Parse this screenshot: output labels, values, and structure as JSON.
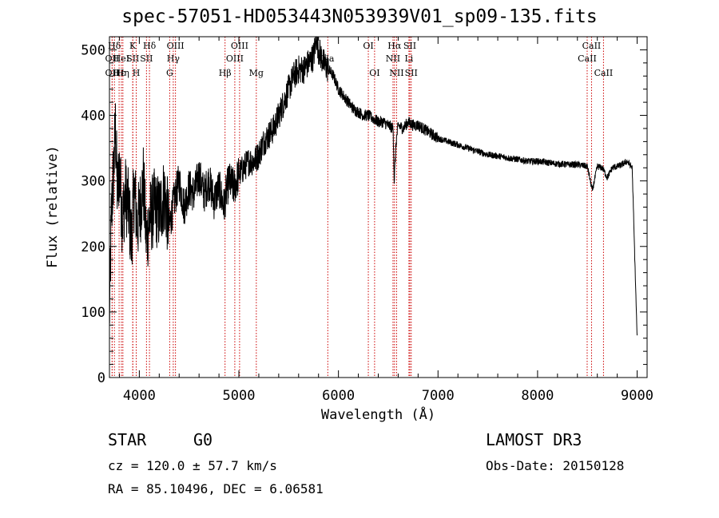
{
  "chart_data": {
    "type": "line",
    "title": "spec-57051-HD053443N053939V01_sp09-135.fits",
    "xlabel": "Wavelength (Å)",
    "ylabel": "Flux (relative)",
    "xlim": [
      3700,
      9100
    ],
    "ylim": [
      0,
      520
    ],
    "xticks": [
      4000,
      5000,
      6000,
      7000,
      8000,
      9000
    ],
    "yticks": [
      0,
      100,
      200,
      300,
      400,
      500
    ],
    "series": [
      {
        "name": "flux",
        "x": [
          3700,
          3720,
          3740,
          3760,
          3780,
          3800,
          3830,
          3860,
          3890,
          3920,
          3950,
          3980,
          4010,
          4040,
          4070,
          4100,
          4150,
          4200,
          4250,
          4300,
          4350,
          4400,
          4450,
          4500,
          4550,
          4600,
          4650,
          4700,
          4750,
          4800,
          4850,
          4870,
          4900,
          4950,
          5000,
          5050,
          5100,
          5150,
          5200,
          5250,
          5300,
          5350,
          5400,
          5450,
          5500,
          5550,
          5600,
          5650,
          5700,
          5750,
          5780,
          5800,
          5850,
          5900,
          5950,
          6000,
          6050,
          6100,
          6150,
          6200,
          6250,
          6300,
          6350,
          6400,
          6450,
          6500,
          6550,
          6560,
          6580,
          6600,
          6650,
          6700,
          6750,
          6800,
          6850,
          6900,
          6950,
          7000,
          7100,
          7200,
          7300,
          7400,
          7500,
          7600,
          7700,
          7800,
          7900,
          8000,
          8100,
          8200,
          8300,
          8400,
          8500,
          8550,
          8600,
          8650,
          8700,
          8750,
          8800,
          8850,
          8900,
          8950,
          9000
        ],
        "values": [
          90,
          250,
          310,
          380,
          280,
          320,
          240,
          280,
          260,
          210,
          290,
          230,
          260,
          300,
          210,
          240,
          260,
          250,
          280,
          230,
          270,
          300,
          260,
          290,
          280,
          310,
          280,
          300,
          270,
          290,
          260,
          280,
          300,
          290,
          310,
          320,
          330,
          330,
          340,
          360,
          370,
          380,
          400,
          420,
          440,
          460,
          470,
          470,
          480,
          490,
          520,
          500,
          480,
          470,
          460,
          440,
          430,
          420,
          410,
          405,
          400,
          400,
          395,
          390,
          390,
          385,
          380,
          300,
          360,
          385,
          380,
          390,
          385,
          385,
          380,
          375,
          370,
          365,
          360,
          355,
          350,
          345,
          340,
          338,
          335,
          333,
          330,
          330,
          328,
          326,
          325,
          325,
          322,
          285,
          322,
          320,
          305,
          320,
          322,
          325,
          330,
          320,
          60
        ]
      }
    ],
    "lines": [
      {
        "label": "Hδ",
        "x": 3750,
        "row": 0
      },
      {
        "label": "OII",
        "x": 3727,
        "row": 1
      },
      {
        "label": "OII",
        "x": 3727,
        "row": 2
      },
      {
        "label": "Hε",
        "x": 3797,
        "row": 2
      },
      {
        "label": "Hη",
        "x": 3835,
        "row": 2
      },
      {
        "label": "HeI",
        "x": 3820,
        "row": 1
      },
      {
        "label": "K",
        "x": 3934,
        "row": 0
      },
      {
        "label": "SII",
        "x": 3935,
        "row": 1
      },
      {
        "label": "H",
        "x": 3969,
        "row": 2
      },
      {
        "label": "Hδ",
        "x": 4102,
        "row": 0
      },
      {
        "label": "SII",
        "x": 4072,
        "row": 1
      },
      {
        "label": "OIII",
        "x": 4363,
        "row": 0
      },
      {
        "label": "Hγ",
        "x": 4341,
        "row": 1
      },
      {
        "label": "G",
        "x": 4305,
        "row": 2
      },
      {
        "label": "Hβ",
        "x": 4861,
        "row": 2
      },
      {
        "label": "OIII",
        "x": 5007,
        "row": 0
      },
      {
        "label": "OIII",
        "x": 4959,
        "row": 1
      },
      {
        "label": "Mg",
        "x": 5175,
        "row": 2
      },
      {
        "label": "Na",
        "x": 5893,
        "row": 1
      },
      {
        "label": "OI",
        "x": 6300,
        "row": 0
      },
      {
        "label": "OI",
        "x": 6363,
        "row": 2
      },
      {
        "label": "Hα",
        "x": 6563,
        "row": 0
      },
      {
        "label": "NII",
        "x": 6548,
        "row": 1
      },
      {
        "label": "NII",
        "x": 6584,
        "row": 2
      },
      {
        "label": "SII",
        "x": 6717,
        "row": 0
      },
      {
        "label": "Li",
        "x": 6708,
        "row": 1
      },
      {
        "label": "SII",
        "x": 6731,
        "row": 2
      },
      {
        "label": "CaII",
        "x": 8542,
        "row": 0
      },
      {
        "label": "CaII",
        "x": 8498,
        "row": 1
      },
      {
        "label": "CaII",
        "x": 8662,
        "row": 2
      }
    ]
  },
  "info": {
    "object_class": "STAR",
    "subclass": "G0",
    "survey": "LAMOST DR3",
    "cz_line": "cz = 120.0 ± 57.7 km/s",
    "obs_date": "Obs-Date: 20150128",
    "radec": "RA =  85.10496, DEC =   6.06581"
  },
  "colors": {
    "line_marker": "#cc0000",
    "spectrum": "#000000",
    "axes": "#000000"
  }
}
